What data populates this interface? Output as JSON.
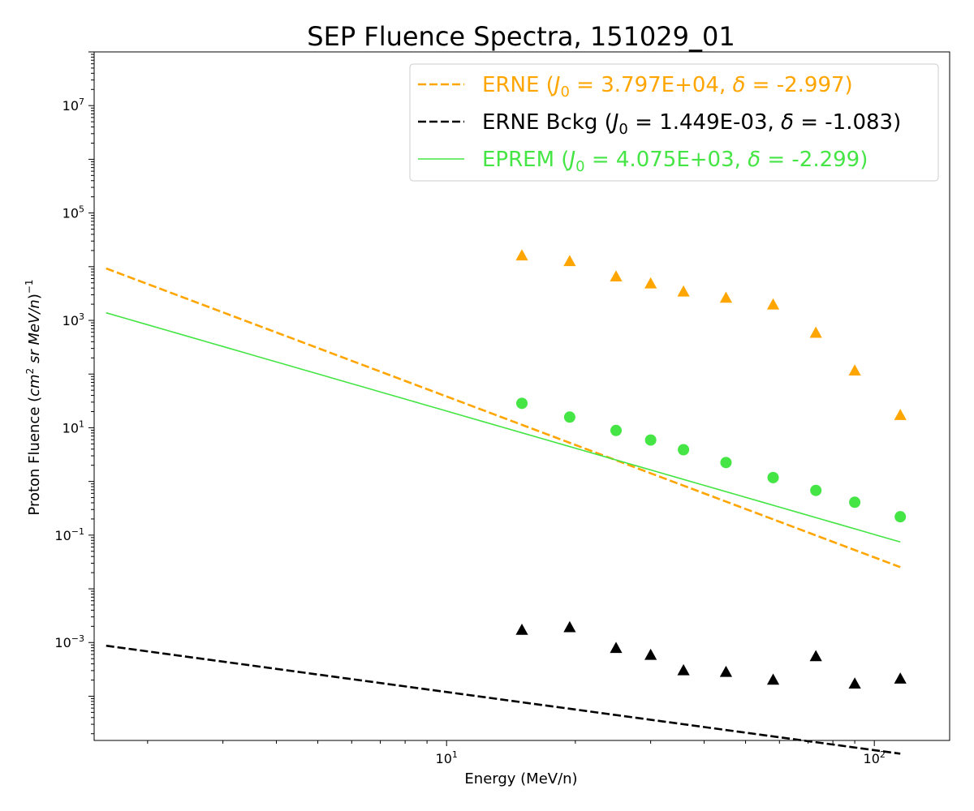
{
  "chart_data": {
    "type": "scatter",
    "title": "SEP Fluence Spectra, 151029_01",
    "xlabel": "Energy (MeV/n)",
    "ylabel": "Proton Fluence (cm² sr MeV/n)⁻¹",
    "x_scale": "log",
    "y_scale": "log",
    "xlim": [
      1.5,
      150
    ],
    "ylim": [
      1.5e-05,
      100000000.0
    ],
    "x_ticks": [
      {
        "value": 10,
        "base": "10",
        "exp": "1"
      },
      {
        "value": 100,
        "base": "10",
        "exp": "2"
      }
    ],
    "y_ticks": [
      {
        "value": 0.001,
        "base": "10",
        "exp": "−3"
      },
      {
        "value": 0.1,
        "base": "10",
        "exp": "−1"
      },
      {
        "value": 10,
        "base": "10",
        "exp": "1"
      },
      {
        "value": 1000,
        "base": "10",
        "exp": "3"
      },
      {
        "value": 100000,
        "base": "10",
        "exp": "5"
      },
      {
        "value": 10000000,
        "base": "10",
        "exp": "7"
      }
    ],
    "grid": false,
    "legend_position": "top-right",
    "series": [
      {
        "name": "ERNE (J₀ = 3.797E+04, δ = -2.997)",
        "color": "#ffa500",
        "marker": "triangle",
        "x": [
          15.0,
          19.4,
          24.9,
          30.0,
          35.8,
          45.0,
          58.0,
          73.0,
          90.0,
          115.0
        ],
        "y": [
          16000,
          12500,
          6500,
          4800,
          3400,
          2600,
          1950,
          580,
          115,
          17
        ],
        "fit": {
          "line_style": "dashed",
          "J0": 37970.0,
          "delta": -2.997,
          "x_range": [
            1.6,
            115
          ]
        }
      },
      {
        "name": "ERNE Bckg (J₀ = 1.449E-03, δ = -1.083)",
        "color": "#000000",
        "marker": "triangle",
        "x": [
          15.0,
          19.4,
          24.9,
          30.0,
          35.8,
          45.0,
          58.0,
          73.0,
          90.0,
          115.0
        ],
        "y": [
          0.0017,
          0.0019,
          0.00078,
          0.00058,
          0.0003,
          0.00028,
          0.0002,
          0.00055,
          0.00017,
          0.00021
        ],
        "fit": {
          "line_style": "dashed",
          "J0": 0.001449,
          "delta": -1.083,
          "x_range": [
            1.6,
            115
          ]
        }
      },
      {
        "name": "EPREM (J₀ = 4.075E+03, δ = -2.299)",
        "color": "#44e544",
        "marker": "circle",
        "x": [
          15.0,
          19.4,
          24.9,
          30.0,
          35.8,
          45.0,
          58.0,
          73.0,
          90.0,
          115.0
        ],
        "y": [
          28.5,
          15.8,
          8.9,
          5.9,
          3.9,
          2.25,
          1.18,
          0.68,
          0.41,
          0.22
        ],
        "fit": {
          "line_style": "solid",
          "J0": 4075.0,
          "delta": -2.299,
          "x_range": [
            1.6,
            115
          ]
        }
      }
    ],
    "legend": [
      {
        "prefix": "ERNE (",
        "j": "J",
        "sub": "0",
        "mid": " = 3.797E+04, ",
        "delta": "δ",
        "suffix": " = -2.997)"
      },
      {
        "prefix": "ERNE Bckg (",
        "j": "J",
        "sub": "0",
        "mid": " = 1.449E-03, ",
        "delta": "δ",
        "suffix": " = -1.083)"
      },
      {
        "prefix": "EPREM (",
        "j": "J",
        "sub": "0",
        "mid": " = 4.075E+03, ",
        "delta": "δ",
        "suffix": " = -2.299)"
      }
    ],
    "ylabel_parts": {
      "prefix": "Proton Fluence (",
      "cm": "cm",
      "cm_exp": "2",
      "sr": " sr MeV/n",
      "close": ")",
      "exp": "−1"
    }
  }
}
